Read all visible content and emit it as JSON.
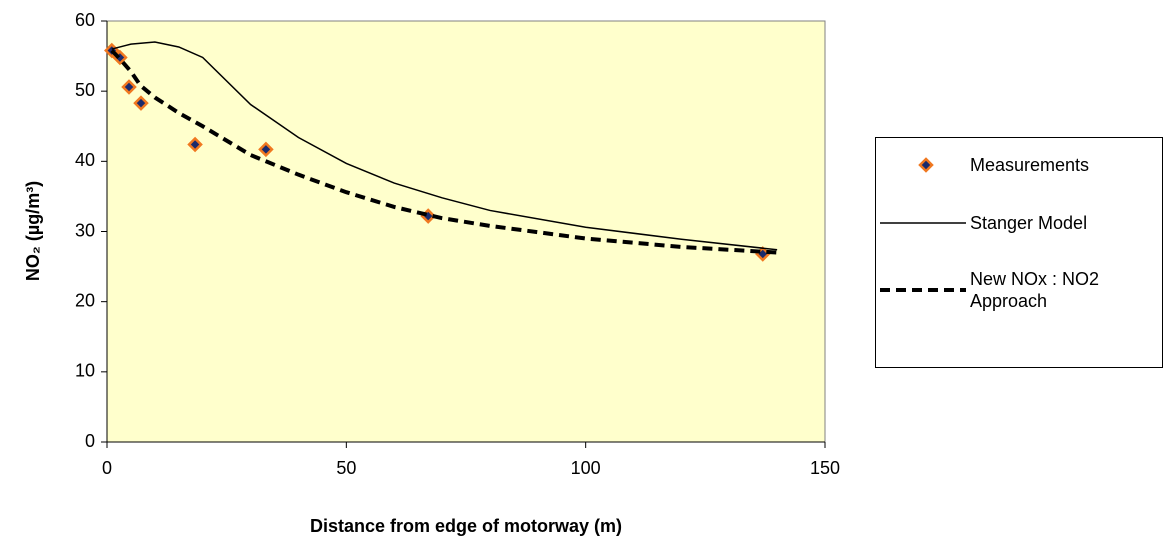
{
  "chart_data": {
    "type": "line",
    "xlabel": "Distance from edge of motorway (m)",
    "ylabel": "NO₂ (µg/m³)",
    "xlim": [
      0,
      150
    ],
    "xticks": [
      0,
      50,
      100,
      150
    ],
    "ylim": [
      0,
      60
    ],
    "yticks": [
      0,
      10,
      20,
      30,
      40,
      50,
      60
    ],
    "plot_background": "#ffffcc",
    "series": [
      {
        "name": "Measurements",
        "style": "markers",
        "color": "#f07820",
        "marker_face": "#1a2a6c",
        "x": [
          1.0,
          2.7,
          4.6,
          7.1,
          18.4,
          33.2,
          67.1,
          137
        ],
        "values": [
          55.8,
          54.8,
          50.6,
          48.3,
          42.4,
          41.7,
          32.2,
          26.8
        ]
      },
      {
        "name": "Stanger Model",
        "style": "solid",
        "color": "#000000",
        "x": [
          1,
          5,
          10,
          15,
          20,
          30,
          40,
          50,
          60,
          70,
          80,
          100,
          120,
          140
        ],
        "values": [
          56.0,
          56.7,
          57.0,
          56.3,
          54.8,
          48.1,
          43.4,
          39.7,
          36.9,
          34.8,
          33.0,
          30.6,
          28.9,
          27.4
        ]
      },
      {
        "name": "New NOx : NO2 Approach",
        "style": "dashed",
        "color": "#000000",
        "x": [
          1,
          2.7,
          5,
          7,
          10,
          15,
          20,
          30,
          40,
          50,
          60,
          70,
          80,
          100,
          120,
          140
        ],
        "values": [
          55.8,
          54.6,
          52.8,
          50.8,
          49.1,
          46.9,
          45.0,
          40.9,
          38.1,
          35.6,
          33.5,
          31.9,
          30.8,
          29.0,
          27.8,
          27.0
        ]
      }
    ]
  }
}
